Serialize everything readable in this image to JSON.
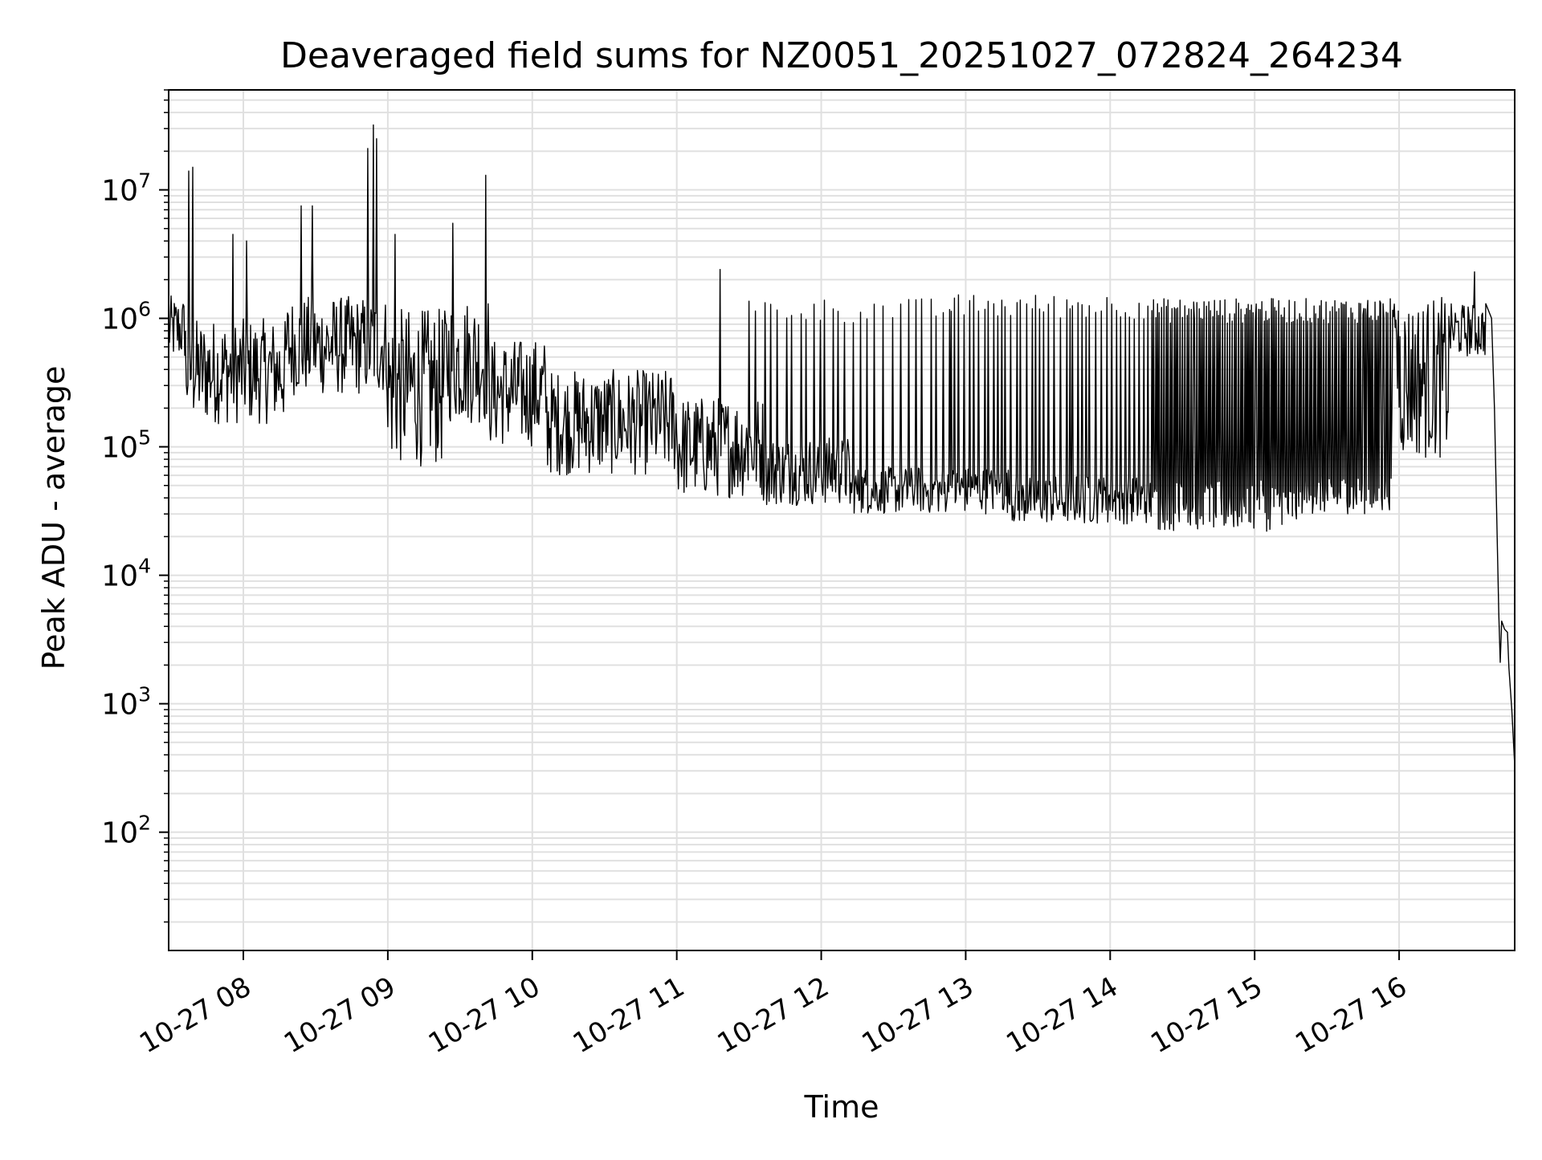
{
  "chart_data": {
    "type": "line",
    "title": "Deaveraged field sums for NZ0051_20251027_072824_264234",
    "xlabel": "Time",
    "ylabel": "Peak ADU - average",
    "yscale": "log",
    "ylim": [
      12,
      60000000
    ],
    "xlim_hours": [
      7.483,
      16.8
    ],
    "grid": true,
    "x_ticks": [
      {
        "hour": 8,
        "label": "10-27 08"
      },
      {
        "hour": 9,
        "label": "10-27 09"
      },
      {
        "hour": 10,
        "label": "10-27 10"
      },
      {
        "hour": 11,
        "label": "10-27 11"
      },
      {
        "hour": 12,
        "label": "10-27 12"
      },
      {
        "hour": 13,
        "label": "10-27 13"
      },
      {
        "hour": 14,
        "label": "10-27 14"
      },
      {
        "hour": 15,
        "label": "10-27 15"
      },
      {
        "hour": 16,
        "label": "10-27 16"
      }
    ],
    "y_ticks": [
      {
        "exp": 2,
        "base": "10",
        "sup": "2"
      },
      {
        "exp": 3,
        "base": "10",
        "sup": "3"
      },
      {
        "exp": 4,
        "base": "10",
        "sup": "4"
      },
      {
        "exp": 5,
        "base": "10",
        "sup": "5"
      },
      {
        "exp": 6,
        "base": "10",
        "sup": "6"
      },
      {
        "exp": 7,
        "base": "10",
        "sup": "7"
      }
    ],
    "series": [
      {
        "name": "Peak ADU - average",
        "color": "#000000",
        "baseline_segments": [
          {
            "start": 7.483,
            "end": 7.6,
            "low": 450000,
            "high": 1500000
          },
          {
            "start": 7.6,
            "end": 8.3,
            "low": 150000,
            "high": 1000000
          },
          {
            "start": 8.3,
            "end": 9.0,
            "low": 250000,
            "high": 1500000
          },
          {
            "start": 9.0,
            "end": 9.4,
            "low": 70000,
            "high": 1200000
          },
          {
            "start": 9.4,
            "end": 9.7,
            "low": 150000,
            "high": 1500000
          },
          {
            "start": 9.7,
            "end": 10.1,
            "low": 100000,
            "high": 700000
          },
          {
            "start": 10.1,
            "end": 11.0,
            "low": 60000,
            "high": 400000
          },
          {
            "start": 11.0,
            "end": 11.6,
            "low": 40000,
            "high": 250000
          },
          {
            "start": 11.6,
            "end": 12.2,
            "low": 35000,
            "high": 120000
          },
          {
            "start": 12.2,
            "end": 13.3,
            "low": 30000,
            "high": 70000
          },
          {
            "start": 13.3,
            "end": 14.3,
            "low": 25000,
            "high": 60000
          },
          {
            "start": 14.3,
            "end": 15.3,
            "low": 22000,
            "high": 55000
          },
          {
            "start": 15.3,
            "end": 15.95,
            "low": 30000,
            "high": 60000
          },
          {
            "start": 15.95,
            "end": 16.35,
            "low": 80000,
            "high": 1500000
          },
          {
            "start": 16.35,
            "end": 16.6,
            "low": 500000,
            "high": 1300000
          }
        ],
        "spike_regions": [
          {
            "start": 11.5,
            "end": 12.9,
            "every_min": 3.0,
            "peak": 1300000
          },
          {
            "start": 12.9,
            "end": 14.3,
            "every_min": 2.0,
            "peak": 1400000
          },
          {
            "start": 14.3,
            "end": 16.0,
            "every_min": 0.8,
            "peak": 1300000
          }
        ],
        "notable_points": [
          {
            "hour": 7.62,
            "value": 14000000
          },
          {
            "hour": 7.65,
            "value": 15000000
          },
          {
            "hour": 7.93,
            "value": 4500000
          },
          {
            "hour": 8.02,
            "value": 4000000
          },
          {
            "hour": 8.4,
            "value": 7500000
          },
          {
            "hour": 8.48,
            "value": 7500000
          },
          {
            "hour": 8.86,
            "value": 21000000
          },
          {
            "hour": 8.9,
            "value": 32000000
          },
          {
            "hour": 8.92,
            "value": 25000000
          },
          {
            "hour": 9.05,
            "value": 4500000
          },
          {
            "hour": 9.45,
            "value": 5500000
          },
          {
            "hour": 9.68,
            "value": 13000000
          },
          {
            "hour": 11.3,
            "value": 2400000
          },
          {
            "hour": 16.52,
            "value": 2300000
          }
        ],
        "tail": [
          {
            "hour": 16.6,
            "value": 1300000
          },
          {
            "hour": 16.64,
            "value": 1000000
          },
          {
            "hour": 16.66,
            "value": 200000
          },
          {
            "hour": 16.69,
            "value": 5000
          },
          {
            "hour": 16.7,
            "value": 2100
          },
          {
            "hour": 16.71,
            "value": 4400
          },
          {
            "hour": 16.73,
            "value": 3800
          },
          {
            "hour": 16.75,
            "value": 3600
          },
          {
            "hour": 16.76,
            "value": 1900
          },
          {
            "hour": 16.78,
            "value": 900
          },
          {
            "hour": 16.8,
            "value": 330
          }
        ]
      }
    ]
  }
}
